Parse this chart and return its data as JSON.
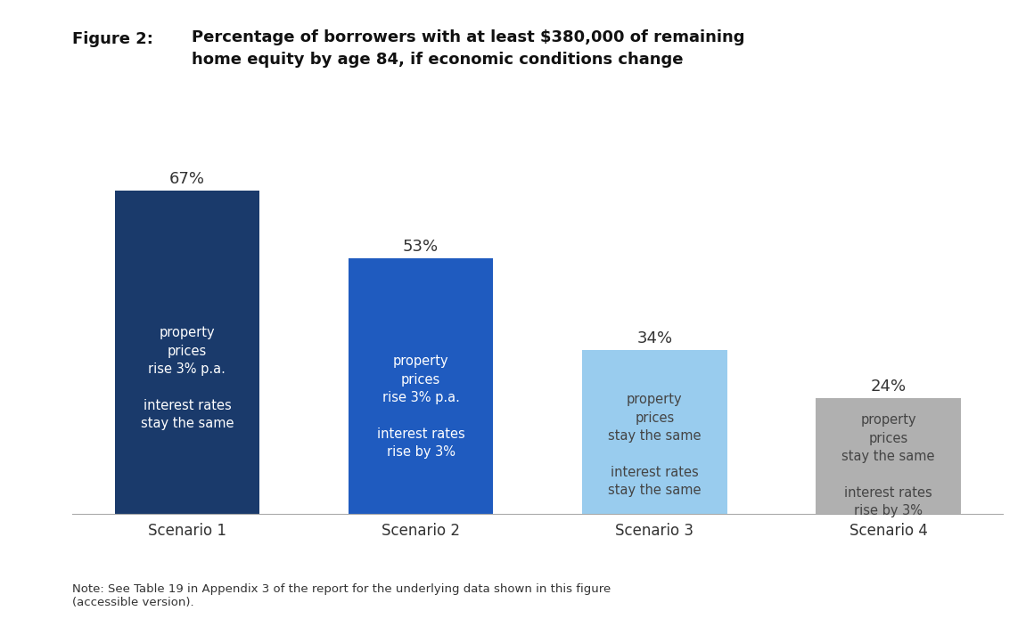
{
  "title_line1": "Figure 2:   Percentage of borrowers with at least $380,000 of remaining",
  "title_line2": "home equity by age 84, if economic conditions change",
  "title_prefix": "Figure 2:",
  "title_rest_line1": "  Percentage of borrowers with at least $380,000 of remaining",
  "title_rest_line2": "home equity by age 84, if economic conditions change",
  "categories": [
    "Scenario 1",
    "Scenario 2",
    "Scenario 3",
    "Scenario 4"
  ],
  "values": [
    67,
    53,
    34,
    24
  ],
  "bar_colors": [
    "#1a3a6b",
    "#1f5bbf",
    "#99ccee",
    "#b0b0b0"
  ],
  "bar_labels": [
    "67%",
    "53%",
    "34%",
    "24%"
  ],
  "bar_texts": [
    "property\nprices\nrise 3% p.a.\n\ninterest rates\nstay the same",
    "property\nprices\nrise 3% p.a.\n\ninterest rates\nrise by 3%",
    "property\nprices\nstay the same\n\ninterest rates\nstay the same",
    "property\nprices\nstay the same\n\ninterest rates\nrise by 3%"
  ],
  "text_colors": [
    "#ffffff",
    "#ffffff",
    "#444444",
    "#444444"
  ],
  "ylim": [
    0,
    78
  ],
  "note": "Note: See Table 19 in Appendix 3 of the report for the underlying data shown in this figure\n(accessible version).",
  "background_color": "#ffffff",
  "bar_width": 0.62
}
